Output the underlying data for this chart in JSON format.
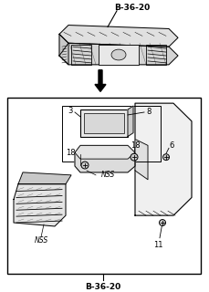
{
  "bg_color": "#ffffff",
  "line_color": "#000000",
  "gray_fill": "#d8d8d8",
  "light_fill": "#eeeeee",
  "label_b3620_top": "B-36-20",
  "label_b3620_bottom": "B-36-20",
  "label_3": "3",
  "label_8": "8",
  "label_18a": "18",
  "label_18b": "18",
  "label_6": "6",
  "label_11": "11",
  "label_nss1": "NSS",
  "label_nss2": "NSS",
  "figsize": [
    2.29,
    3.2
  ],
  "dpi": 100
}
